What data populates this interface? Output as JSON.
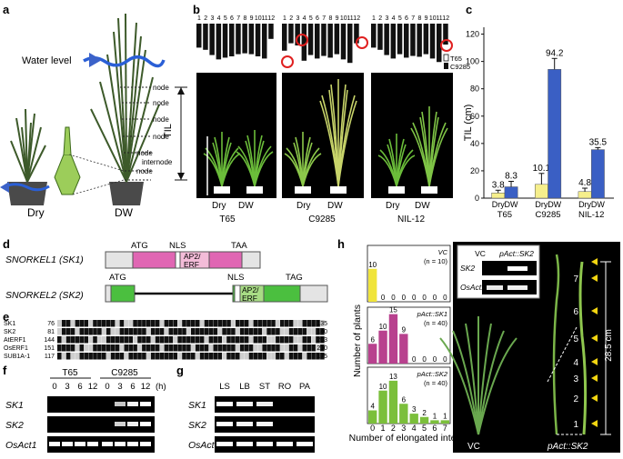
{
  "panels": {
    "a": "a",
    "b": "b",
    "c": "c",
    "d": "d",
    "e": "e",
    "f": "f",
    "g": "g",
    "h": "h"
  },
  "panel_a": {
    "water_level": "Water level",
    "til": "TIL",
    "node": "node",
    "internode": "internode",
    "dry": "Dry",
    "dw": "DW"
  },
  "panel_b": {
    "numbers": [
      "1",
      "2",
      "3",
      "4",
      "5",
      "6",
      "7",
      "8",
      "9",
      "10",
      "11",
      "12"
    ],
    "legend": [
      "T65",
      "C9285"
    ],
    "groups": [
      {
        "name": "T65",
        "labels": [
          "Dry",
          "DW"
        ]
      },
      {
        "name": "C9285",
        "labels": [
          "Dry",
          "DW"
        ]
      },
      {
        "name": "NIL-12",
        "labels": [
          "Dry",
          "DW"
        ]
      }
    ],
    "bar_heights": [
      [
        0.55,
        0.6,
        0.72,
        0.82,
        0.78,
        0.75,
        0.7,
        0.68,
        0.7,
        0.75,
        0.8,
        0.35
      ],
      [
        0.62,
        0.45,
        0.5,
        0.85,
        0.72,
        0.8,
        0.74,
        0.78,
        0.7,
        0.82,
        0.9,
        0.45
      ],
      [
        0.55,
        0.6,
        0.72,
        0.8,
        0.7,
        0.78,
        0.74,
        0.76,
        0.7,
        0.8,
        0.88,
        0.48
      ]
    ]
  },
  "chart_data": {
    "type": "bar",
    "ylabel": "TIL (cm)",
    "ylim": [
      0,
      125
    ],
    "yticks": [
      0,
      20,
      40,
      60,
      80,
      100,
      120
    ],
    "categories": [
      "T65",
      "C9285",
      "NIL-12"
    ],
    "series": [
      {
        "name": "Dry",
        "values": [
          3.8,
          10.1,
          4.8
        ],
        "errors": [
          2.0,
          8.0,
          2.5
        ],
        "color": "#f6ef8c"
      },
      {
        "name": "DW",
        "values": [
          8.3,
          94.2,
          35.5
        ],
        "errors": [
          4.0,
          8.0,
          1.5
        ],
        "color": "#3a5fc4"
      }
    ],
    "value_labels": [
      "3.8",
      "8.3",
      "10.1",
      "94.2",
      "4.8",
      "35.5"
    ],
    "xlabels": [
      "Dry",
      "DW"
    ]
  },
  "panel_d": {
    "sk1": "SNORKEL1 (SK1)",
    "sk2": "SNORKEL2 (SK2)",
    "atg": "ATG",
    "nls": "NLS",
    "taa": "TAA",
    "tag": "TAG",
    "ap2": "AP2/",
    "erf": "ERF"
  },
  "panel_e": {
    "rows": [
      {
        "name": "SK1",
        "start": "76",
        "end": "135"
      },
      {
        "name": "SK2",
        "start": "81",
        "end": "140"
      },
      {
        "name": "AtERF1",
        "start": "144",
        "end": "203"
      },
      {
        "name": "OsERF1",
        "start": "151",
        "end": "210"
      },
      {
        "name": "SUB1A-1",
        "start": "117",
        "end": "175"
      }
    ]
  },
  "panel_f": {
    "groups": [
      "T65",
      "C9285"
    ],
    "times": [
      "0",
      "3",
      "6",
      "12",
      "0",
      "3",
      "6",
      "12"
    ],
    "unit": "(h)",
    "genes": [
      "SK1",
      "SK2",
      "OsAct1"
    ]
  },
  "panel_g": {
    "tissues": [
      "LS",
      "LB",
      "ST",
      "RO",
      "PA"
    ],
    "genes": [
      "SK1",
      "SK2",
      "OsAct1"
    ]
  },
  "panel_h": {
    "ylabel": "Number of plants",
    "xlabel": "Number of elongated internode",
    "xticks": [
      "0",
      "1",
      "2",
      "3",
      "4",
      "5",
      "6",
      "7"
    ],
    "hist": [
      {
        "name": "VC",
        "n": "(n = 10)",
        "values": [
          10,
          0,
          0,
          0,
          0,
          0,
          0,
          0
        ],
        "color": "#f0e43a"
      },
      {
        "name": "pAct::SK1",
        "n": "(n = 40)",
        "values": [
          6,
          10,
          15,
          9,
          0,
          0,
          0,
          0
        ],
        "color": "#b8418e"
      },
      {
        "name": "pAct::SK2",
        "n": "(n = 40)",
        "values": [
          4,
          10,
          13,
          6,
          3,
          2,
          1,
          1
        ],
        "color": "#7bbf3b"
      }
    ],
    "gel": {
      "cols": [
        "VC",
        "pAct::SK2"
      ],
      "rows": [
        "SK2",
        "OsAct1"
      ]
    },
    "photo": {
      "height": "28.5 cm",
      "nodes": [
        "1",
        "2",
        "3",
        "4",
        "5",
        "6",
        "7"
      ],
      "vc": "VC",
      "sk2": "pAct::SK2"
    }
  }
}
